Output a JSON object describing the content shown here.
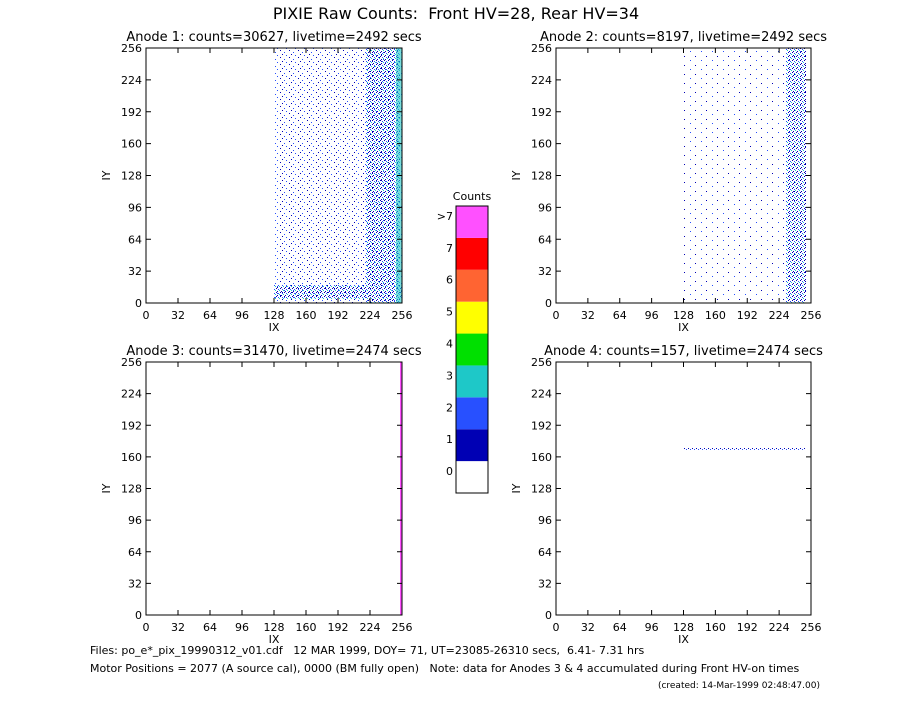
{
  "title": "PIXIE Raw Counts:  Front HV=28, Rear HV=34",
  "chart_data": [
    {
      "type": "heatmap",
      "title": "Anode 1: counts=30627, livetime=2492 secs",
      "xlabel": "IX",
      "ylabel": "IY",
      "xlim": [
        0,
        256
      ],
      "xticks": [
        0,
        32,
        64,
        96,
        128,
        160,
        192,
        224,
        256
      ],
      "ylim": [
        0,
        256
      ],
      "yticks": [
        0,
        32,
        64,
        96,
        128,
        160,
        192,
        224,
        256
      ]
    },
    {
      "type": "heatmap",
      "title": "Anode 2: counts=8197, livetime=2492 secs",
      "xlabel": "IX",
      "ylabel": "IY",
      "xlim": [
        0,
        256
      ],
      "xticks": [
        0,
        32,
        64,
        96,
        128,
        160,
        192,
        224,
        256
      ],
      "ylim": [
        0,
        256
      ],
      "yticks": [
        0,
        32,
        64,
        96,
        128,
        160,
        192,
        224,
        256
      ]
    },
    {
      "type": "heatmap",
      "title": "Anode 3: counts=31470, livetime=2474 secs",
      "xlabel": "IX",
      "ylabel": "IY",
      "xlim": [
        0,
        256
      ],
      "xticks": [
        0,
        32,
        64,
        96,
        128,
        160,
        192,
        224,
        256
      ],
      "ylim": [
        0,
        256
      ],
      "yticks": [
        0,
        32,
        64,
        96,
        128,
        160,
        192,
        224,
        256
      ]
    },
    {
      "type": "heatmap",
      "title": "Anode 4: counts=157, livetime=2474 secs",
      "xlabel": "IX",
      "ylabel": "IY",
      "xlim": [
        0,
        256
      ],
      "xticks": [
        0,
        32,
        64,
        96,
        128,
        160,
        192,
        224,
        256
      ],
      "ylim": [
        0,
        256
      ],
      "yticks": [
        0,
        32,
        64,
        96,
        128,
        160,
        192,
        224,
        256
      ]
    }
  ],
  "colorbar": {
    "title": "Counts",
    "levels": [
      "0",
      "1",
      "2",
      "3",
      "4",
      "5",
      "6",
      "7",
      ">7"
    ],
    "colors": [
      "#ffffff",
      "#0000b4",
      "#2850ff",
      "#1ec8c8",
      "#00e000",
      "#ffff00",
      "#ff6432",
      "#ff0000",
      "#ff50ff"
    ]
  },
  "footer": {
    "files": "Files: po_e*_pix_19990312_v01.cdf   12 MAR 1999, DOY= 71, UT=23085-26310 secs,  6.41- 7.31 hrs",
    "motor": "Motor Positions = 2077 (A source cal), 0000 (BM fully open)   Note: data for Anodes 3 & 4 accumulated during Front HV-on times",
    "created": "(created: 14-Mar-1999 02:48:47.00)"
  }
}
